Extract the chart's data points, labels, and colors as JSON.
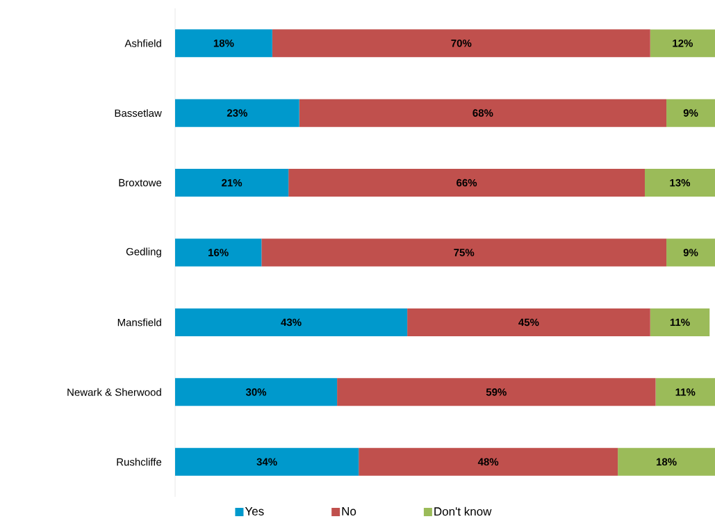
{
  "chart_data": {
    "type": "bar",
    "orientation": "horizontal",
    "stacked": true,
    "legend": "bottom",
    "xlim": [
      0,
      100
    ],
    "categories": [
      "Ashfield",
      "Bassetlaw",
      "Broxtowe",
      "Gedling",
      "Mansfield",
      "Newark & Sherwood",
      "Rushcliffe"
    ],
    "series": [
      {
        "name": "Yes",
        "color": "#0099cc",
        "values": [
          18,
          23,
          21,
          16,
          43,
          30,
          34
        ],
        "value_labels": [
          "18%",
          "23%",
          "21%",
          "16%",
          "43%",
          "30%",
          "34%"
        ]
      },
      {
        "name": "No",
        "color": "#c0504d",
        "values": [
          70,
          68,
          66,
          75,
          45,
          59,
          48
        ],
        "value_labels": [
          "70%",
          "68%",
          "66%",
          "75%",
          "45%",
          "59%",
          "48%"
        ]
      },
      {
        "name": "Don't know",
        "color": "#9bbb59",
        "values": [
          12,
          9,
          13,
          9,
          11,
          11,
          18
        ],
        "value_labels": [
          "12%",
          "9%",
          "13%",
          "9%",
          "11%",
          "11%",
          "18%"
        ]
      }
    ]
  }
}
